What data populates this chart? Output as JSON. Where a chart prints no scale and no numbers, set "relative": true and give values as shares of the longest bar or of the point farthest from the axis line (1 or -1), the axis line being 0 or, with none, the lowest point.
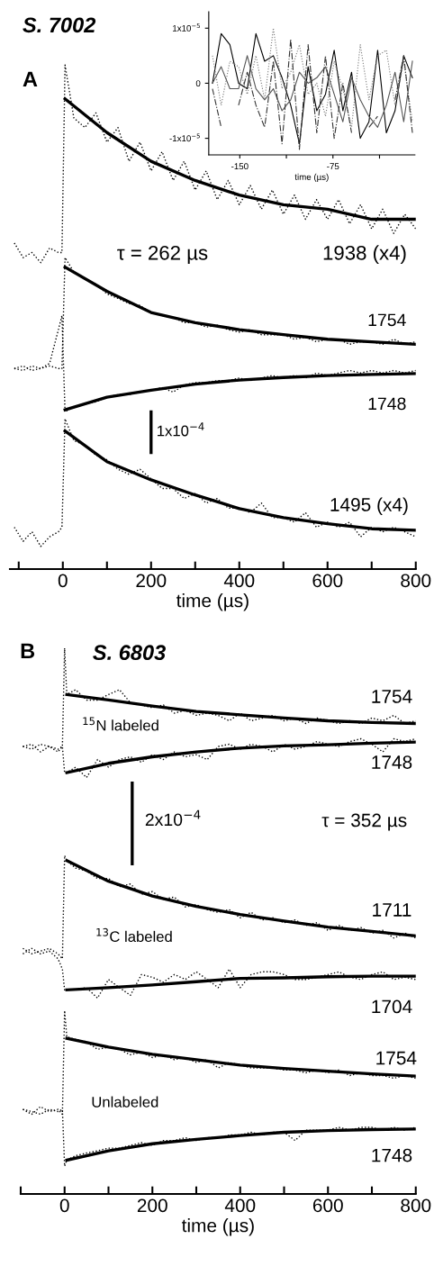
{
  "chart_data": [
    {
      "type": "line",
      "title": "S. 7002",
      "xlabel": "time (µs)",
      "relative": true,
      "tick_labels": "x",
      "legend": false,
      "grid": false,
      "marker": "none",
      "xlim": [
        -120,
        800
      ],
      "xticks": [
        {
          "value": -100,
          "label": null
        },
        0,
        {
          "value": 100,
          "label": null
        },
        200,
        {
          "value": 300,
          "label": null
        },
        400,
        {
          "value": 500,
          "label": null
        },
        600,
        {
          "value": 700,
          "label": null
        },
        800
      ],
      "x": [
        -110,
        -90,
        -70,
        -50,
        -30,
        -10,
        -2,
        5,
        25,
        50,
        75,
        100,
        125,
        150,
        175,
        200,
        225,
        250,
        275,
        300,
        325,
        350,
        375,
        400,
        425,
        450,
        475,
        500,
        525,
        550,
        575,
        600,
        625,
        650,
        675,
        700,
        725,
        750,
        775,
        800
      ],
      "series": [
        {
          "color": "#000000",
          "line_style": "dotted",
          "values": [
            0.647,
            0.618,
            0.628,
            0.608,
            0.637,
            0.628,
            0.628,
            1.0,
            0.895,
            0.876,
            0.905,
            0.847,
            0.876,
            0.809,
            0.847,
            0.79,
            0.828,
            0.771,
            0.809,
            0.752,
            0.79,
            0.733,
            0.771,
            0.723,
            0.761,
            0.714,
            0.752,
            0.704,
            0.742,
            0.694,
            0.733,
            0.694,
            0.733,
            0.685,
            0.723,
            0.675,
            0.714,
            0.666,
            0.704,
            0.675
          ]
        },
        {
          "color": "#000000",
          "line_style": "solid",
          "x": [
            5,
            100,
            200,
            300,
            400,
            500,
            600,
            700,
            800
          ],
          "values": [
            0.933,
            0.866,
            0.809,
            0.771,
            0.742,
            0.723,
            0.714,
            0.694,
            0.694
          ]
        },
        {
          "color": "#000000",
          "line_style": "dotted",
          "values": [
            0.398,
            0.403,
            0.394,
            0.398,
            0.403,
            0.398,
            0.398,
            0.618,
            0.589,
            0.575,
            0.565,
            0.546,
            0.537,
            0.527,
            0.523,
            0.508,
            0.503,
            0.499,
            0.489,
            0.489,
            0.48,
            0.484,
            0.475,
            0.47,
            0.475,
            0.465,
            0.465,
            0.465,
            0.456,
            0.46,
            0.451,
            0.456,
            0.456,
            0.446,
            0.451,
            0.451,
            0.446,
            0.456,
            0.446,
            0.451
          ]
        },
        {
          "color": "#000000",
          "line_style": "solid",
          "x": [
            5,
            100,
            200,
            300,
            400,
            500,
            600,
            700,
            800
          ],
          "values": [
            0.599,
            0.551,
            0.509,
            0.489,
            0.475,
            0.465,
            0.456,
            0.451,
            0.446
          ]
        },
        {
          "color": "#000000",
          "line_style": "dotted",
          "values": [
            0.398,
            0.394,
            0.403,
            0.398,
            0.408,
            0.475,
            0.503,
            0.312,
            0.322,
            0.327,
            0.332,
            0.341,
            0.346,
            0.346,
            0.351,
            0.355,
            0.36,
            0.351,
            0.365,
            0.37,
            0.37,
            0.374,
            0.374,
            0.379,
            0.374,
            0.379,
            0.384,
            0.379,
            0.384,
            0.379,
            0.389,
            0.384,
            0.389,
            0.394,
            0.389,
            0.394,
            0.389,
            0.394,
            0.389,
            0.394
          ]
        },
        {
          "color": "#000000",
          "line_style": "solid",
          "x": [
            5,
            100,
            200,
            300,
            400,
            500,
            600,
            700,
            800
          ],
          "values": [
            0.316,
            0.341,
            0.355,
            0.367,
            0.375,
            0.38,
            0.384,
            0.386,
            0.388
          ]
        },
        {
          "color": "#000000",
          "line_style": "dotted",
          "values": [
            0.083,
            0.055,
            0.074,
            0.045,
            0.064,
            0.074,
            0.083,
            0.298,
            0.255,
            0.246,
            0.226,
            0.217,
            0.198,
            0.188,
            0.198,
            0.179,
            0.16,
            0.16,
            0.14,
            0.15,
            0.131,
            0.14,
            0.121,
            0.121,
            0.112,
            0.131,
            0.102,
            0.102,
            0.093,
            0.112,
            0.083,
            0.093,
            0.083,
            0.093,
            0.064,
            0.083,
            0.074,
            0.083,
            0.074,
            0.064
          ]
        },
        {
          "color": "#000000",
          "line_style": "solid",
          "x": [
            5,
            100,
            200,
            300,
            400,
            500,
            600,
            700,
            800
          ],
          "values": [
            0.274,
            0.213,
            0.177,
            0.147,
            0.12,
            0.102,
            0.09,
            0.08,
            0.077
          ]
        },
        {
          "color": "#000000",
          "line_style": "solid",
          "x": [
            200,
            200
          ],
          "values": [
            0.231,
            0.312
          ]
        }
      ],
      "annotations": [
        "A",
        "τ = 262 µs",
        "1938 (x4)",
        "1754",
        "1748",
        "1x10$^{−4}$",
        "1495 (x4)"
      ]
    },
    {
      "type": "line",
      "xlabel": "time (µs)",
      "legend": false,
      "grid": false,
      "marker": "none",
      "xlim": [
        -175,
        -9
      ],
      "xticks": [
        -150,
        {
          "value": -112.5,
          "label": null
        },
        -75,
        {
          "value": -37.5,
          "label": null
        }
      ],
      "ylim": [
        -1.3e-05,
        1.3e-05
      ],
      "yticks": [
        {
          "value": 1e-05,
          "label": "1x10$^{−5}$"
        },
        0,
        {
          "value": -1e-05,
          "label": "-1x10$^{−5}$"
        }
      ],
      "x": [
        -172,
        -165,
        -158,
        -151,
        -144,
        -137,
        -130,
        -123,
        -116,
        -109,
        -102,
        -95,
        -88,
        -81,
        -74,
        -67,
        -60,
        -53,
        -46,
        -39,
        -32,
        -25,
        -18,
        -11
      ],
      "series": [
        {
          "color": "#000000",
          "line_style": "solid",
          "values": [
            0,
            9e-06,
            7e-06,
            0,
            -1e-06,
            9e-06,
            4e-06,
            5e-06,
            1e-06,
            -4e-06,
            -1.1e-05,
            3e-06,
            -5e-06,
            -2e-06,
            6e-06,
            -5e-06,
            2e-06,
            -1e-05,
            -7e-06,
            6e-06,
            -9e-06,
            -5e-06,
            5e-06,
            1e-06
          ]
        },
        {
          "color": "#555555",
          "line_style": "solid",
          "values": [
            0,
            3e-06,
            -1e-06,
            -1e-06,
            5e-06,
            -1e-06,
            -3e-06,
            -1e-06,
            -5e-06,
            -3e-06,
            2e-06,
            0,
            1e-06,
            3e-06,
            -2e-06,
            -7e-06,
            1e-06,
            -3e-06,
            -6e-06,
            -8e-06,
            -4e-06,
            2e-06,
            -7e-06,
            4e-06
          ]
        },
        {
          "color": "#777777",
          "line_style": "dotted",
          "values": [
            5e-06,
            -4e-06,
            4e-06,
            3e-06,
            -2e-06,
            5e-06,
            -3e-06,
            1e-05,
            -1e-06,
            2e-06,
            7e-06,
            -2e-06,
            0,
            -6e-06,
            4e-06,
            -1e-06,
            -8e-06,
            7e-06,
            -3e-06,
            5e-06,
            6e-06,
            -4e-06,
            4e-06,
            -7e-06
          ]
        },
        {
          "color": "#333333",
          "line_style": "dashdot",
          "values": [
            -1e-06,
            -8e-06,
            null,
            -4e-06,
            2e-06,
            -4e-06,
            -8e-06,
            4e-06,
            -1.1e-05,
            8e-06,
            -1.2e-05,
            7e-06,
            -9e-06,
            5e-06,
            -1e-05,
            0,
            -9e-06,
            null,
            -8e-06,
            -6e-06,
            null,
            -3e-06,
            5e-06,
            -9e-06
          ]
        }
      ]
    },
    {
      "type": "line",
      "title": "S. 6803",
      "xlabel": "time (µs)",
      "relative": true,
      "tick_labels": "x",
      "legend": false,
      "grid": false,
      "marker": "none",
      "xlim": [
        -100,
        800
      ],
      "xticks": [
        {
          "value": -100,
          "label": null
        },
        0,
        {
          "value": 100,
          "label": null
        },
        200,
        {
          "value": 300,
          "label": null
        },
        400,
        {
          "value": 500,
          "label": null
        },
        600,
        {
          "value": 700,
          "label": null
        },
        800
      ],
      "x": [
        -95,
        -75,
        -55,
        -35,
        -15,
        -5,
        0,
        5,
        25,
        50,
        75,
        100,
        125,
        150,
        175,
        200,
        225,
        250,
        275,
        300,
        325,
        350,
        375,
        400,
        425,
        450,
        475,
        500,
        525,
        550,
        575,
        600,
        625,
        650,
        675,
        700,
        725,
        750,
        775,
        800
      ],
      "series": [
        {
          "color": "#000000",
          "line_style": "dotted",
          "values": [
            0.82,
            0.815,
            0.824,
            0.82,
            0.81,
            0.82,
            1.0,
            0.915,
            0.924,
            0.905,
            0.905,
            0.915,
            0.924,
            0.9,
            0.896,
            0.891,
            0.896,
            0.881,
            0.886,
            0.877,
            0.881,
            0.877,
            0.867,
            0.881,
            0.867,
            0.872,
            0.877,
            0.867,
            0.872,
            0.862,
            0.872,
            0.867,
            0.862,
            0.867,
            0.862,
            0.872,
            0.867,
            0.877,
            0.862,
            0.867
          ]
        },
        {
          "color": "#000000",
          "line_style": "solid",
          "x": [
            5,
            100,
            200,
            300,
            400,
            500,
            600,
            700,
            800
          ],
          "values": [
            0.915,
            0.905,
            0.894,
            0.884,
            0.878,
            0.872,
            0.867,
            0.864,
            0.862
          ]
        },
        {
          "color": "#000000",
          "line_style": "dotted",
          "values": [
            0.82,
            0.824,
            0.81,
            0.82,
            0.815,
            0.82,
            0.772,
            0.772,
            0.782,
            0.763,
            0.796,
            0.782,
            0.796,
            0.801,
            0.791,
            0.805,
            0.796,
            0.81,
            0.801,
            0.805,
            0.796,
            0.82,
            0.824,
            0.815,
            0.824,
            0.82,
            0.81,
            0.824,
            0.815,
            0.82,
            0.829,
            0.824,
            0.82,
            0.829,
            0.834,
            0.824,
            0.81,
            0.834,
            0.829,
            0.834
          ]
        },
        {
          "color": "#000000",
          "line_style": "solid",
          "x": [
            5,
            100,
            200,
            300,
            400,
            500,
            600,
            700,
            800
          ],
          "values": [
            0.772,
            0.789,
            0.801,
            0.81,
            0.817,
            0.821,
            0.823,
            0.826,
            0.828
          ]
        },
        {
          "color": "#000000",
          "line_style": "dotted",
          "values": [
            0.45,
            0.44,
            0.445,
            0.45,
            0.44,
            0.431,
            0.62,
            0.611,
            0.597,
            0.592,
            0.578,
            0.578,
            0.563,
            0.568,
            0.549,
            0.554,
            0.54,
            0.544,
            0.526,
            0.53,
            0.521,
            0.516,
            0.521,
            0.506,
            0.516,
            0.502,
            0.506,
            0.497,
            0.502,
            0.492,
            0.497,
            0.483,
            0.492,
            0.483,
            0.488,
            0.478,
            0.483,
            0.469,
            0.478,
            0.469
          ]
        },
        {
          "color": "#000000",
          "line_style": "solid",
          "x": [
            5,
            100,
            200,
            300,
            400,
            500,
            600,
            700,
            800
          ],
          "values": [
            0.611,
            0.573,
            0.546,
            0.527,
            0.512,
            0.5,
            0.489,
            0.481,
            0.473
          ]
        },
        {
          "color": "#000000",
          "line_style": "dotted",
          "values": [
            0.44,
            0.45,
            0.44,
            0.445,
            0.431,
            0.412,
            0.374,
            0.374,
            0.374,
            0.378,
            0.359,
            0.393,
            0.378,
            0.364,
            0.402,
            0.397,
            0.388,
            0.402,
            0.393,
            0.407,
            0.393,
            0.378,
            0.412,
            0.378,
            0.402,
            0.407,
            0.407,
            0.402,
            0.393,
            0.393,
            0.397,
            0.402,
            0.407,
            0.397,
            0.393,
            0.402,
            0.407,
            0.393,
            0.397,
            0.393
          ]
        },
        {
          "color": "#000000",
          "line_style": "solid",
          "x": [
            5,
            100,
            200,
            300,
            400,
            500,
            600,
            700,
            800
          ],
          "values": [
            0.374,
            0.378,
            0.383,
            0.389,
            0.395,
            0.396,
            0.398,
            0.399,
            0.399
          ]
        },
        {
          "color": "#000000",
          "line_style": "dotted",
          "values": [
            0.155,
            0.146,
            0.16,
            0.151,
            0.155,
            0.146,
            0.336,
            0.288,
            0.283,
            0.279,
            0.265,
            0.269,
            0.265,
            0.255,
            0.26,
            0.25,
            0.255,
            0.246,
            0.25,
            0.241,
            0.246,
            0.231,
            0.241,
            0.236,
            0.231,
            0.231,
            0.231,
            0.227,
            0.227,
            0.222,
            0.227,
            0.222,
            0.227,
            0.217,
            0.222,
            0.217,
            0.217,
            0.212,
            0.217,
            0.212
          ]
        },
        {
          "color": "#000000",
          "line_style": "solid",
          "x": [
            5,
            100,
            200,
            300,
            400,
            500,
            600,
            700,
            800
          ],
          "values": [
            0.285,
            0.269,
            0.256,
            0.246,
            0.236,
            0.23,
            0.225,
            0.22,
            0.216
          ]
        },
        {
          "color": "#000000",
          "line_style": "dotted",
          "values": [
            0.155,
            0.151,
            0.146,
            0.155,
            0.151,
            0.155,
            0.051,
            0.062,
            0.07,
            0.075,
            0.079,
            0.084,
            0.084,
            0.089,
            0.094,
            0.089,
            0.098,
            0.098,
            0.103,
            0.098,
            0.103,
            0.103,
            0.108,
            0.108,
            0.113,
            0.108,
            0.113,
            0.113,
            0.098,
            0.117,
            0.117,
            0.117,
            0.122,
            0.117,
            0.122,
            0.122,
            0.117,
            0.122,
            0.117,
            0.122
          ]
        },
        {
          "color": "#000000",
          "line_style": "solid",
          "x": [
            5,
            100,
            200,
            300,
            400,
            500,
            600,
            700,
            800
          ],
          "values": [
            0.062,
            0.079,
            0.092,
            0.1,
            0.107,
            0.113,
            0.116,
            0.118,
            0.119
          ]
        },
        {
          "color": "#000000",
          "line_style": "solid",
          "x": [
            154,
            154
          ],
          "values": [
            0.605,
            0.753
          ]
        }
      ],
      "annotations": [
        "B",
        "1754",
        "$^{15}$N labeled",
        "1748",
        "2x10$^{−4}$",
        "τ = 352 µs",
        "1711",
        "$^{13}$C labeled",
        "1704",
        "1754",
        "Unlabeled",
        "1748"
      ]
    }
  ]
}
